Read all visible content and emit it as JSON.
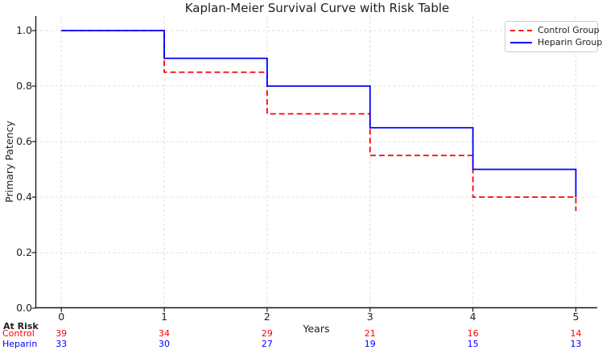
{
  "chart_data": {
    "type": "line",
    "subtype": "kaplan-meier-step",
    "title": "Kaplan-Meier Survival Curve with Risk Table",
    "xlabel": "Years",
    "ylabel": "Primary Patency",
    "x_ticks": [
      "0",
      "1",
      "2",
      "3",
      "4",
      "5"
    ],
    "y_ticks": [
      "0.0",
      "0.2",
      "0.4",
      "0.6",
      "0.8",
      "1.0"
    ],
    "xlim": [
      0,
      5
    ],
    "ylim": [
      0,
      1.05
    ],
    "grid": true,
    "legend_position": "upper right",
    "colors": {
      "control": "#ff0000",
      "heparin": "#0000ff",
      "gridline": "#dddddd",
      "axis": "#1a1a1a"
    },
    "series": [
      {
        "name": "Control Group",
        "color": "#ff0000",
        "style": "dashed",
        "x": [
          0,
          1,
          2,
          3,
          4,
          5
        ],
        "y": [
          1.0,
          0.85,
          0.7,
          0.55,
          0.4,
          0.35
        ]
      },
      {
        "name": "Heparin Group",
        "color": "#0000ff",
        "style": "solid",
        "x": [
          0,
          1,
          2,
          3,
          4,
          5
        ],
        "y": [
          1.0,
          0.9,
          0.8,
          0.65,
          0.5,
          0.4
        ]
      }
    ],
    "risk_table": {
      "header": "At Risk",
      "rows": [
        {
          "label": "Control",
          "color": "#ff0000",
          "values": [
            "39",
            "34",
            "29",
            "21",
            "16",
            "14"
          ]
        },
        {
          "label": "Heparin",
          "color": "#0000ff",
          "values": [
            "33",
            "30",
            "27",
            "19",
            "15",
            "13"
          ]
        }
      ]
    }
  }
}
